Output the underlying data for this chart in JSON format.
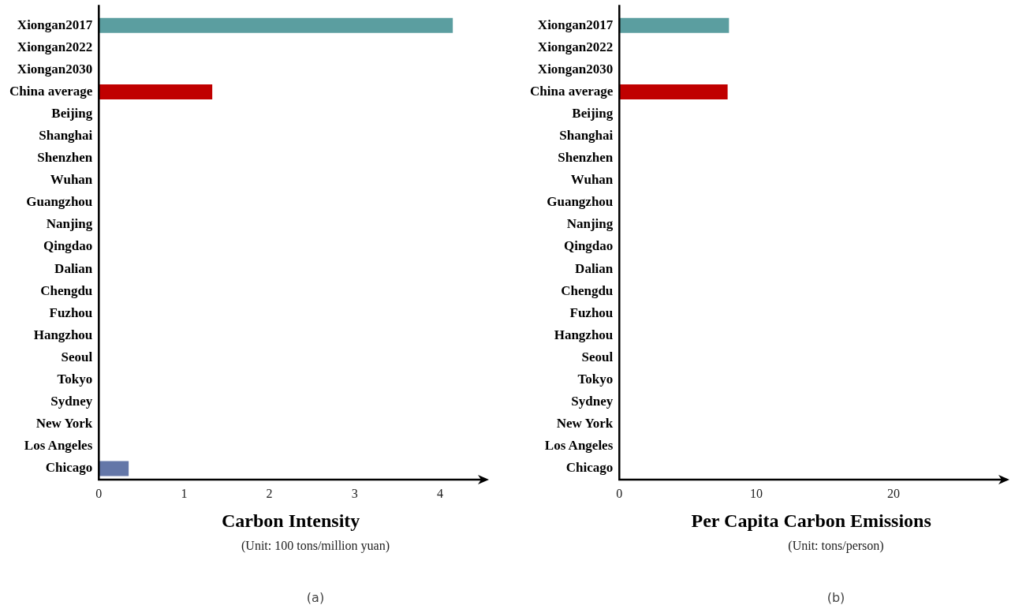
{
  "chart_data": [
    {
      "type": "bar",
      "orientation": "horizontal",
      "xlabel": "Carbon Intensity",
      "categories": [
        "Xiongan2017",
        "Xiongan2022",
        "Xiongan2030",
        "China average",
        "Beijing",
        "Shanghai",
        "Shenzhen",
        "Wuhan",
        "Guangzhou",
        "Nanjing",
        "Qingdao",
        "Dalian",
        "Chengdu",
        "Fuzhou",
        "Hangzhou",
        "Seoul",
        "Tokyo",
        "Sydney",
        "New York",
        "Los Angeles",
        "Chicago"
      ],
      "values": [
        4.15,
        null,
        null,
        1.33,
        null,
        null,
        null,
        null,
        null,
        null,
        null,
        null,
        null,
        null,
        null,
        null,
        null,
        null,
        null,
        null,
        0.35
      ],
      "colors": [
        "#5b9ea0",
        "#5b9ea0",
        "#5b9ea0",
        "#c00000",
        "#6477a8",
        "#6477a8",
        "#6477a8",
        "#6477a8",
        "#6477a8",
        "#6477a8",
        "#6477a8",
        "#6477a8",
        "#6477a8",
        "#6477a8",
        "#6477a8",
        "#6477a8",
        "#6477a8",
        "#6477a8",
        "#6477a8",
        "#6477a8",
        "#6477a8"
      ],
      "xlim": [
        0,
        4.5
      ],
      "xticks": [
        0,
        1,
        2,
        3,
        4
      ],
      "grid": false,
      "legend": false,
      "annotations": [
        "(Unit: 100 tons/million yuan)",
        "(a)"
      ]
    },
    {
      "type": "bar",
      "orientation": "horizontal",
      "xlabel": "Per Capita Carbon Emissions",
      "categories": [
        "Xiongan2017",
        "Xiongan2022",
        "Xiongan2030",
        "China average",
        "Beijing",
        "Shanghai",
        "Shenzhen",
        "Wuhan",
        "Guangzhou",
        "Nanjing",
        "Qingdao",
        "Dalian",
        "Chengdu",
        "Fuzhou",
        "Hangzhou",
        "Seoul",
        "Tokyo",
        "Sydney",
        "New York",
        "Los Angeles",
        "Chicago"
      ],
      "values": [
        8.0,
        null,
        null,
        7.9,
        null,
        null,
        null,
        null,
        null,
        null,
        null,
        null,
        null,
        null,
        null,
        null,
        null,
        null,
        null,
        null,
        null
      ],
      "colors": [
        "#5b9ea0",
        "#5b9ea0",
        "#5b9ea0",
        "#c00000",
        "#6477a8",
        "#6477a8",
        "#6477a8",
        "#6477a8",
        "#6477a8",
        "#6477a8",
        "#6477a8",
        "#6477a8",
        "#6477a8",
        "#6477a8",
        "#6477a8",
        "#6477a8",
        "#6477a8",
        "#6477a8",
        "#6477a8",
        "#6477a8",
        "#6477a8"
      ],
      "xlim": [
        0,
        28
      ],
      "xticks": [
        0,
        10,
        20
      ],
      "grid": false,
      "legend": false,
      "annotations": [
        "(Unit: tons/person)",
        "(b)"
      ]
    }
  ]
}
